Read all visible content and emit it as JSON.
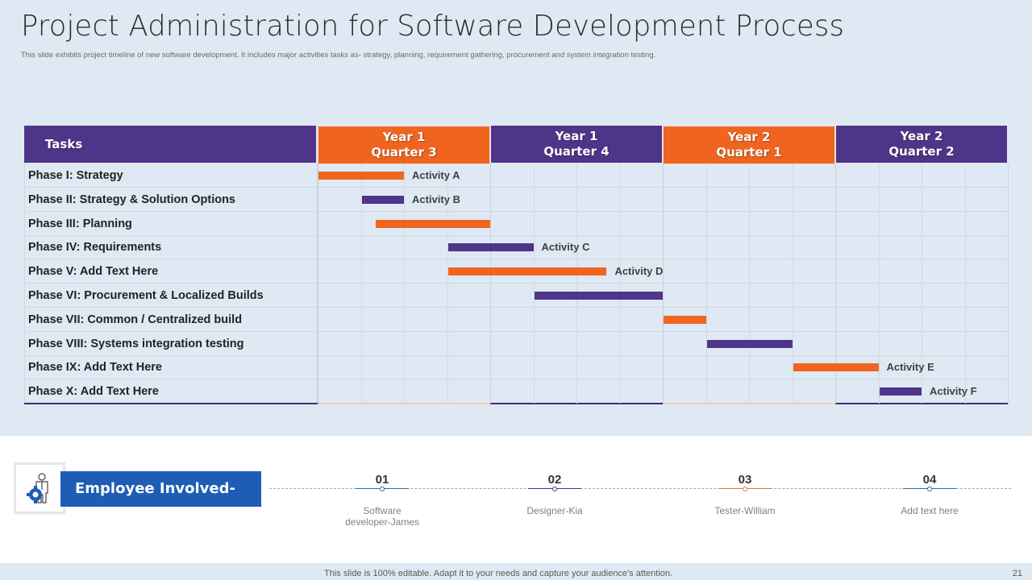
{
  "title": "Project Administration  for Software Development Process",
  "subtitle": "This slide exhibits project timeline of new software development. It includes major activities tasks as- strategy, planning, requirement gathering, procurement and system integration testing.",
  "colors": {
    "orange": "#ef6520",
    "purple": "#4f3589",
    "blue": "#1d5db5"
  },
  "gantt": {
    "tasks_header": "Tasks",
    "subdivisions_per_quarter": 4,
    "quarters": [
      {
        "line1": "Year 1",
        "line2": "Quarter 3",
        "color": "orange"
      },
      {
        "line1": "Year 1",
        "line2": "Quarter 4",
        "color": "purple"
      },
      {
        "line1": "Year 2",
        "line2": "Quarter 1",
        "color": "orange"
      },
      {
        "line1": "Year 2",
        "line2": "Quarter 2",
        "color": "purple"
      }
    ],
    "tasks": [
      {
        "label": "Phase I:  Strategy",
        "start": 0,
        "end": 2,
        "color": "orange",
        "activity": "Activity  A"
      },
      {
        "label": "Phase II:  Strategy & Solution Options",
        "start": 1,
        "end": 2,
        "color": "purple",
        "activity": "Activity  B"
      },
      {
        "label": "Phase III:  Planning",
        "start": 1.33,
        "end": 4,
        "color": "orange",
        "activity": ""
      },
      {
        "label": "Phase IV:  Requirements",
        "start": 3,
        "end": 5,
        "color": "purple",
        "activity": "Activity  C"
      },
      {
        "label": "Phase V:  Add  Text Here",
        "start": 3,
        "end": 6.7,
        "color": "orange",
        "activity": "Activity  D"
      },
      {
        "label": "Phase VI:  Procurement & Localized Builds",
        "start": 5,
        "end": 8,
        "color": "purple",
        "activity": ""
      },
      {
        "label": "Phase VII:  Common  / Centralized build",
        "start": 8,
        "end": 9,
        "color": "orange",
        "activity": ""
      },
      {
        "label": "Phase VIII:  Systems  integration testing",
        "start": 9,
        "end": 11,
        "color": "purple",
        "activity": ""
      },
      {
        "label": "Phase IX:  Add  Text Here",
        "start": 11,
        "end": 13,
        "color": "orange",
        "activity": "Activity  E"
      },
      {
        "label": "Phase X:  Add  Text Here",
        "start": 13,
        "end": 14,
        "color": "purple",
        "activity": "Activity  F"
      }
    ]
  },
  "employees": {
    "heading": "Employee Involved-",
    "icon": "employee-gear-icon",
    "items": [
      {
        "num": "01",
        "desc": "Software\ndeveloper-James",
        "color": "#2e6da4"
      },
      {
        "num": "02",
        "desc": "Designer-Kia",
        "color": "#4f3589"
      },
      {
        "num": "03",
        "desc": "Tester-William",
        "color": "#e07b39"
      },
      {
        "num": "04",
        "desc": "Add text here",
        "color": "#2e6da4"
      }
    ]
  },
  "footer": {
    "text": "This slide is 100% editable. Adapt it to your needs and capture your audience's attention.",
    "page": "21"
  }
}
